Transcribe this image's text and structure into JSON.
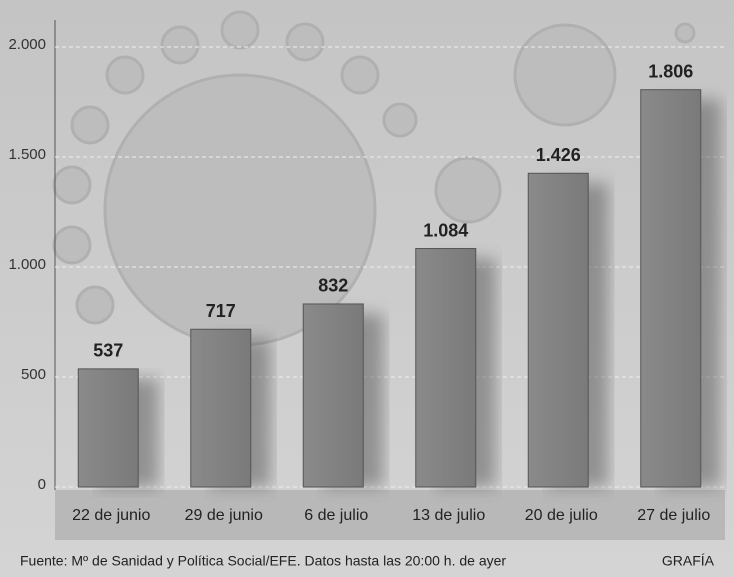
{
  "chart_data": {
    "type": "bar",
    "categories": [
      "22 de junio",
      "29 de junio",
      "6 de julio",
      "13 de julio",
      "20 de julio",
      "27 de julio"
    ],
    "values": [
      537,
      717,
      832,
      1084,
      1426,
      1806
    ],
    "value_labels": [
      "537",
      "717",
      "832",
      "1.084",
      "1.426",
      "1.806"
    ],
    "color": "#7a7a7a",
    "ylim": [
      0,
      2000
    ],
    "yticks": [
      0,
      500,
      {
        "value": 1000,
        "label": "1.000"
      },
      {
        "value": 1500,
        "label": "1.500"
      },
      {
        "value": 2000,
        "label": "2.000"
      }
    ],
    "grid": true,
    "source": "Fuente: Mº de Sanidad y Política Social/EFE. Datos hasta las 20:00 h. de ayer",
    "credit": "GRAFÍA"
  }
}
